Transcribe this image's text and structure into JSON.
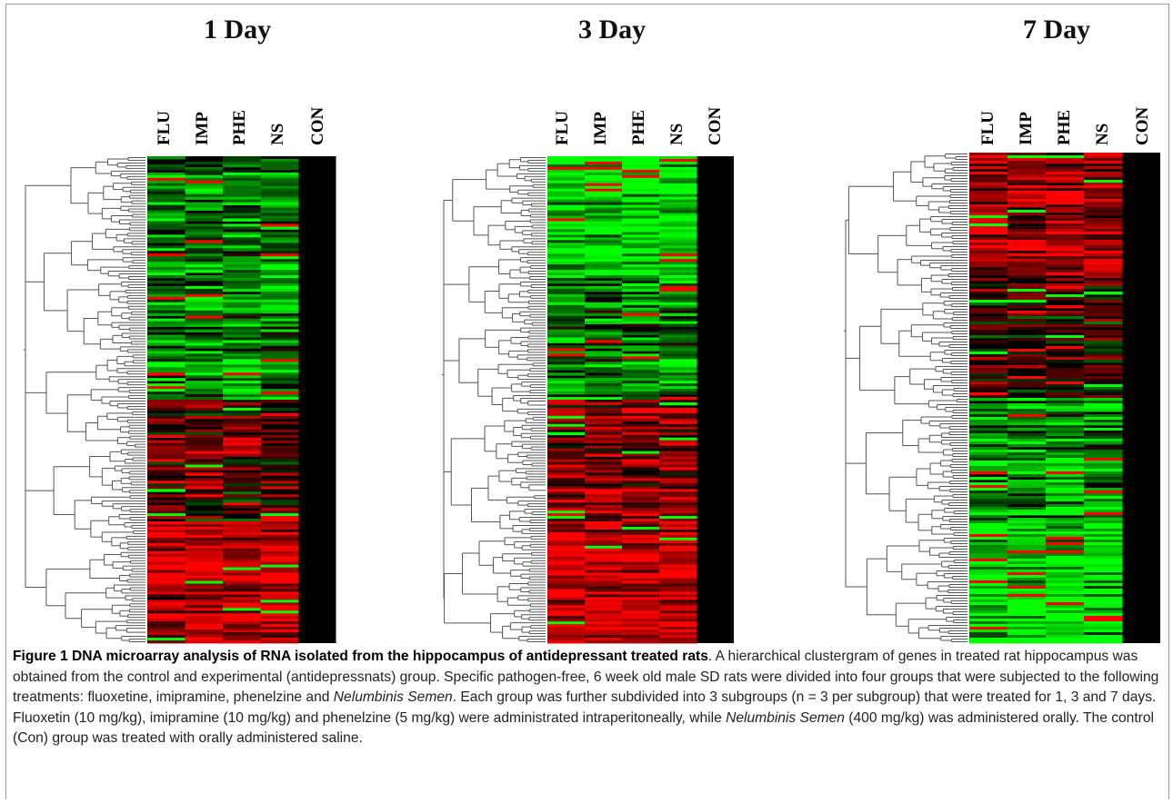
{
  "panels": [
    {
      "title": "1 Day",
      "columns": [
        "FLU",
        "IMP",
        "PHE",
        "NS",
        "CON"
      ]
    },
    {
      "title": "3 Day",
      "columns": [
        "FLU",
        "IMP",
        "PHE",
        "NS",
        "CON"
      ]
    },
    {
      "title": "7 Day",
      "columns": [
        "FLU",
        "IMP",
        "PHE",
        "NS",
        "CON"
      ]
    }
  ],
  "caption": {
    "label": "Figure 1",
    "title": "DNA microarray analysis of RNA isolated from the hippocampus of antidepressant treated rats",
    "seg1": ". A hierarchical clustergram of genes in treated rat hippocampus was obtained from the control and experimental (antidepressnats) group. Specific pathogen-free, 6 week old male SD rats were divided into four groups that were subjected to the following treatments: fluoxetine, imipramine, phenelzine and ",
    "italic1": "Nelumbinis Semen",
    "seg2": ". Each group was further subdivided into 3 subgroups (n = 3 per subgroup) that were treated for 1, 3 and 7 days. Fluoxetin (10 mg/kg), imipramine (10 mg/kg) and phenelzine (5 mg/kg) were administrated intraperitoneally, while ",
    "italic2": "Nelumbinis Semen",
    "seg3": " (400 mg/kg) was administered orally. The control (Con) group was treated with orally administered saline."
  },
  "colors": {
    "up": "#ff0000",
    "down": "#00ff00",
    "neutral": "#000000",
    "tree": "#555555"
  }
}
